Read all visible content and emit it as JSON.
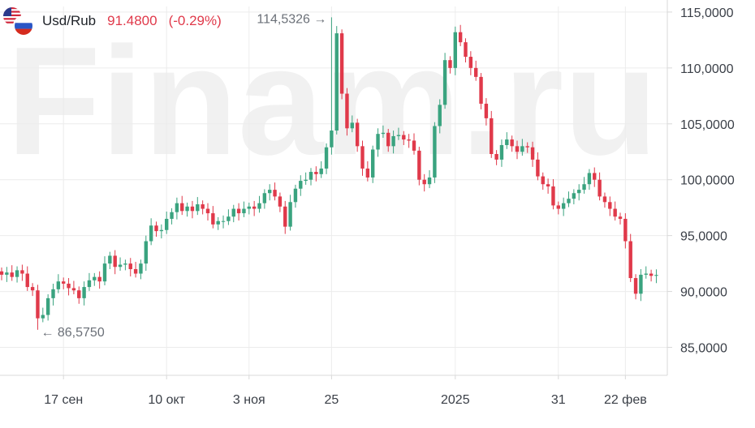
{
  "header": {
    "symbol": "Usd/Rub",
    "price": "91.4800",
    "change": "(-0.29%)",
    "change_color": "#e0394a"
  },
  "watermark": "Finam.ru",
  "colors": {
    "up": "#3aa37f",
    "down": "#e0394a",
    "grid": "#ececec",
    "axis": "#d9d9d9"
  },
  "annotations": {
    "high_label": "114,5326",
    "low_label": "86,5750"
  },
  "chart_data": {
    "type": "candlestick",
    "title": "",
    "ylim": [
      82.5,
      115.5
    ],
    "yticks": [
      {
        "value": 85,
        "label": "85,0000"
      },
      {
        "value": 90,
        "label": "90,0000"
      },
      {
        "value": 95,
        "label": "95,0000"
      },
      {
        "value": 100,
        "label": "100,0000"
      },
      {
        "value": 105,
        "label": "105,0000"
      },
      {
        "value": 110,
        "label": "110,0000"
      },
      {
        "value": 115,
        "label": "115,0000"
      }
    ],
    "xticks": [
      {
        "index": 12,
        "label": "17 сен"
      },
      {
        "index": 32,
        "label": "10 окт"
      },
      {
        "index": 48,
        "label": "3 ноя"
      },
      {
        "index": 64,
        "label": "25"
      },
      {
        "index": 88,
        "label": "2025"
      },
      {
        "index": 108,
        "label": "31"
      },
      {
        "index": 121,
        "label": "22 фев"
      }
    ],
    "x_count": 124,
    "high": {
      "index": 64,
      "value": 114.5326
    },
    "low": {
      "index": 7,
      "value": 86.575
    },
    "closes": [
      91.5,
      91.7,
      91.3,
      91.9,
      91.6,
      90.4,
      90.1,
      87.6,
      87.9,
      89.4,
      90.2,
      90.9,
      90.7,
      90.3,
      90.1,
      89.4,
      90.4,
      91.0,
      91.3,
      90.9,
      92.5,
      93.2,
      92.2,
      92.4,
      92.5,
      92.0,
      91.6,
      92.5,
      94.5,
      95.9,
      95.4,
      95.5,
      96.5,
      97.1,
      97.9,
      97.2,
      97.6,
      97.2,
      97.8,
      97.4,
      97.0,
      96.0,
      96.3,
      96.3,
      96.7,
      97.4,
      97.0,
      97.4,
      97.6,
      97.4,
      97.9,
      98.8,
      99.1,
      98.5,
      97.6,
      95.8,
      98.0,
      99.2,
      99.9,
      100.0,
      100.7,
      100.5,
      101.0,
      102.9,
      104.4,
      113.1,
      107.7,
      104.6,
      105.1,
      103.0,
      101.0,
      100.2,
      102.7,
      104.1,
      104.2,
      103.0,
      103.9,
      104.0,
      103.6,
      103.5,
      102.6,
      100.0,
      99.6,
      100.2,
      104.8,
      106.7,
      110.7,
      110.0,
      113.2,
      112.3,
      111.0,
      110.0,
      109.2,
      106.8,
      105.5,
      102.3,
      101.8,
      103.1,
      103.6,
      103.0,
      102.5,
      103.0,
      102.9,
      101.8,
      100.3,
      99.6,
      99.4,
      97.7,
      97.4,
      97.9,
      98.3,
      98.8,
      99.1,
      99.6,
      100.6,
      100.0,
      98.5,
      98.0,
      97.4,
      96.7,
      96.5,
      94.5,
      91.2,
      89.8,
      91.5,
      91.6,
      91.4,
      91.48
    ],
    "series": [
      {
        "name": "Usd/Rub",
        "values": "closes"
      }
    ]
  }
}
